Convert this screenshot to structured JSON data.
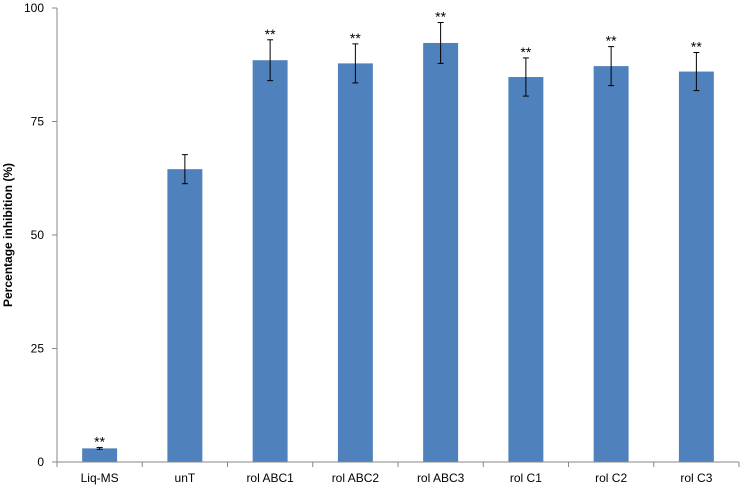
{
  "chart_data": {
    "type": "bar",
    "title": "",
    "xlabel": "",
    "ylabel": "Percentage inhibition (%)",
    "ylim": [
      0,
      100
    ],
    "yticks": [
      0,
      25,
      50,
      75,
      100
    ],
    "grid": false,
    "categories": [
      "Liq-MS",
      "unT",
      "rol ABC1",
      "rol ABC2",
      "rol ABC3",
      "rol C1",
      "rol C2",
      "rol C3"
    ],
    "values": [
      3.0,
      64.5,
      88.5,
      87.8,
      92.3,
      84.8,
      87.2,
      86.0
    ],
    "errors": [
      0.2,
      3.2,
      4.5,
      4.3,
      4.5,
      4.2,
      4.3,
      4.2
    ],
    "annotations": [
      "**",
      "",
      "**",
      "**",
      "**",
      "**",
      "**",
      "**"
    ],
    "bar_color": "#4F81BD"
  }
}
